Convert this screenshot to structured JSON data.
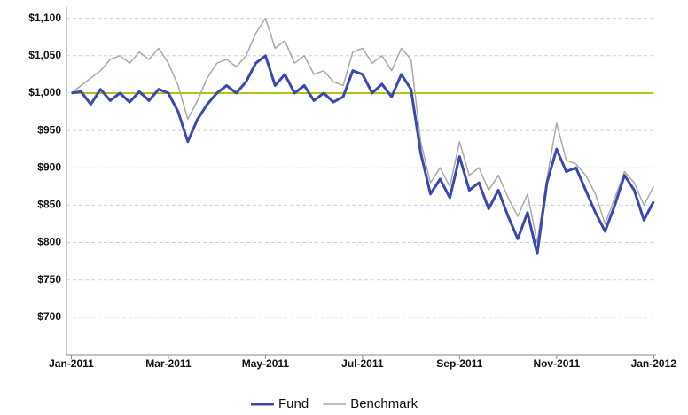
{
  "chart_data": {
    "type": "line",
    "x": [
      0,
      0.2,
      0.4,
      0.6,
      0.8,
      1,
      1.2,
      1.4,
      1.6,
      1.8,
      2,
      2.2,
      2.4,
      2.6,
      2.8,
      3,
      3.2,
      3.4,
      3.6,
      3.8,
      4,
      4.2,
      4.4,
      4.6,
      4.8,
      5,
      5.2,
      5.4,
      5.6,
      5.8,
      6,
      6.2,
      6.4,
      6.6,
      6.8,
      7,
      7.2,
      7.4,
      7.6,
      7.8,
      8,
      8.2,
      8.4,
      8.6,
      8.8,
      9,
      9.2,
      9.4,
      9.6,
      9.8,
      10,
      10.2,
      10.4,
      10.6,
      10.8,
      11,
      11.2,
      11.4,
      11.6,
      11.8,
      12
    ],
    "series": [
      {
        "name": "Benchmark",
        "color": "#a9a9a9",
        "width": 1.5,
        "values": [
          1000,
          1010,
          1020,
          1030,
          1045,
          1050,
          1040,
          1055,
          1045,
          1060,
          1040,
          1010,
          965,
          990,
          1020,
          1040,
          1045,
          1035,
          1050,
          1080,
          1100,
          1060,
          1070,
          1040,
          1050,
          1025,
          1030,
          1015,
          1010,
          1055,
          1060,
          1040,
          1050,
          1030,
          1060,
          1045,
          935,
          880,
          900,
          875,
          935,
          890,
          900,
          870,
          890,
          860,
          835,
          865,
          800,
          885,
          960,
          910,
          905,
          890,
          865,
          825,
          860,
          895,
          880,
          850,
          875
        ]
      },
      {
        "name": "Fund",
        "color": "#3a48b0",
        "width": 3,
        "values": [
          1000,
          1002,
          985,
          1005,
          990,
          1000,
          988,
          1002,
          990,
          1005,
          1000,
          975,
          935,
          965,
          985,
          1000,
          1010,
          1000,
          1015,
          1040,
          1050,
          1010,
          1025,
          1000,
          1010,
          990,
          1000,
          988,
          995,
          1030,
          1025,
          1000,
          1012,
          995,
          1025,
          1005,
          920,
          865,
          885,
          860,
          915,
          870,
          880,
          845,
          870,
          835,
          805,
          840,
          785,
          880,
          925,
          895,
          900,
          870,
          840,
          815,
          850,
          890,
          870,
          830,
          855
        ]
      }
    ],
    "reference_line": {
      "value": 1000,
      "color": "#b5c21a"
    },
    "xlim": [
      -0.1,
      12.05
    ],
    "xticks": [
      {
        "value": 0,
        "label": "Jan-2011"
      },
      {
        "value": 2,
        "label": "Mar-2011"
      },
      {
        "value": 4,
        "label": "May-2011"
      },
      {
        "value": 6,
        "label": "Jul-2011"
      },
      {
        "value": 8,
        "label": "Sep-2011"
      },
      {
        "value": 10,
        "label": "Nov-2011"
      },
      {
        "value": 12,
        "label": "Jan-2012"
      }
    ],
    "ylim": [
      650,
      1115
    ],
    "yticks": [
      {
        "value": 700,
        "label": "$700"
      },
      {
        "value": 750,
        "label": "$750"
      },
      {
        "value": 800,
        "label": "$800"
      },
      {
        "value": 850,
        "label": "$850"
      },
      {
        "value": 900,
        "label": "$900"
      },
      {
        "value": 950,
        "label": "$950"
      },
      {
        "value": 1000,
        "label": "$1,000"
      },
      {
        "value": 1050,
        "label": "$1,050"
      },
      {
        "value": 1100,
        "label": "$1,100"
      }
    ],
    "grid": true,
    "legend_position": "bottom",
    "legend_order": [
      "Fund",
      "Benchmark"
    ]
  }
}
